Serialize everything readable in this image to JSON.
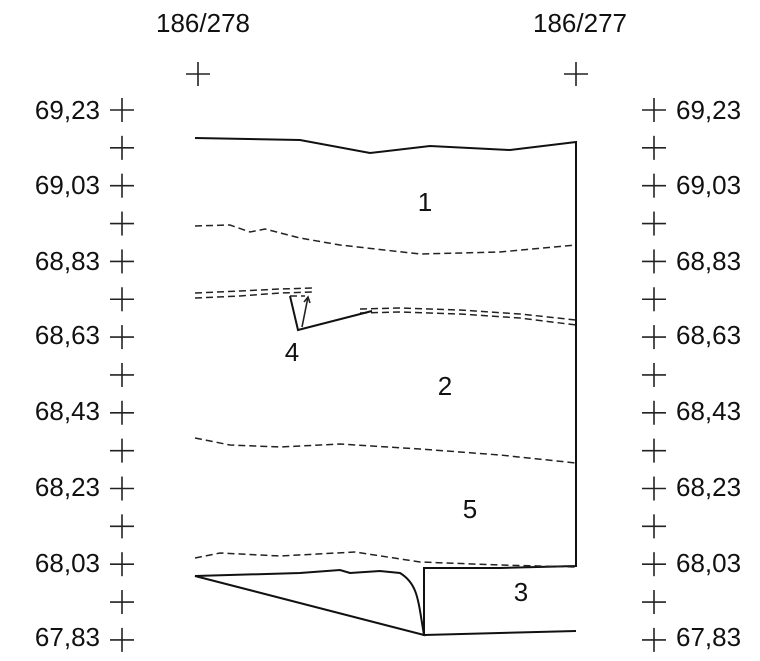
{
  "grid_refs": {
    "left": "186/278",
    "right": "186/277"
  },
  "elevations": [
    "69,23",
    "69,03",
    "68,83",
    "68,63",
    "68,43",
    "68,23",
    "68,03",
    "67,83"
  ],
  "layers": [
    {
      "id": "layer-1",
      "label": "1"
    },
    {
      "id": "layer-2",
      "label": "2"
    },
    {
      "id": "layer-3",
      "label": "3"
    },
    {
      "id": "layer-4",
      "label": "4"
    },
    {
      "id": "layer-5",
      "label": "5"
    }
  ]
}
